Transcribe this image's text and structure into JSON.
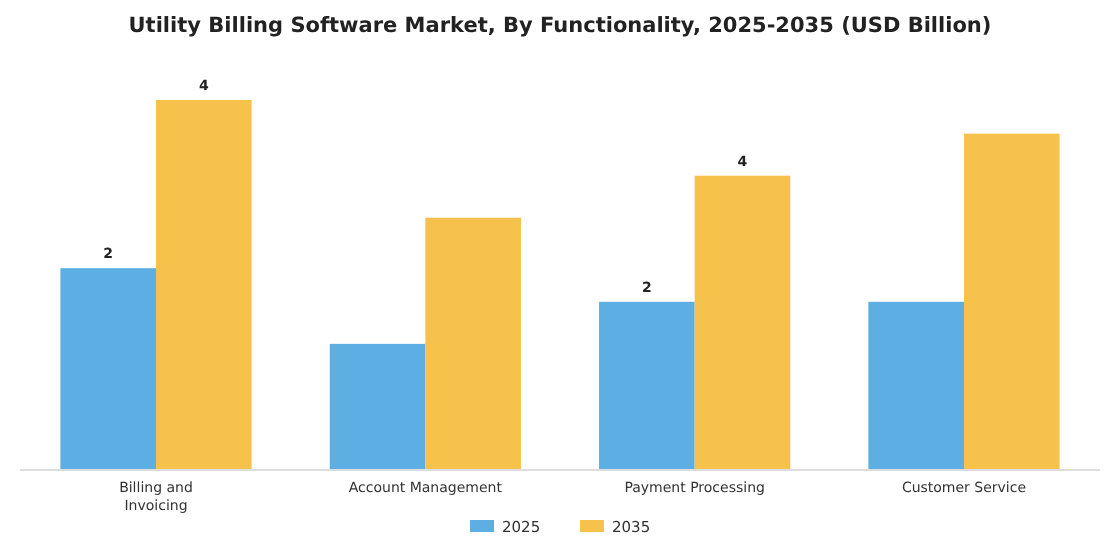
{
  "chart_data": {
    "type": "bar",
    "title": "Utility Billing Software Market, By Functionality, 2025-2035 (USD Billion)",
    "categories": [
      "Billing and Invoicing",
      "Account Management",
      "Payment Processing",
      "Customer Service"
    ],
    "series": [
      {
        "name": "2025",
        "color": "#5dafe3",
        "values": [
          2.4,
          1.5,
          2.0,
          2.0
        ],
        "value_labels": [
          "2",
          null,
          "2",
          null
        ]
      },
      {
        "name": "2035",
        "color": "#f7c24b",
        "values": [
          4.4,
          3.0,
          3.5,
          4.0
        ],
        "value_labels": [
          "4",
          null,
          "4",
          null
        ]
      }
    ],
    "ylim": [
      0,
      4.4
    ],
    "tick_labels": "x",
    "legend": "bottom"
  }
}
